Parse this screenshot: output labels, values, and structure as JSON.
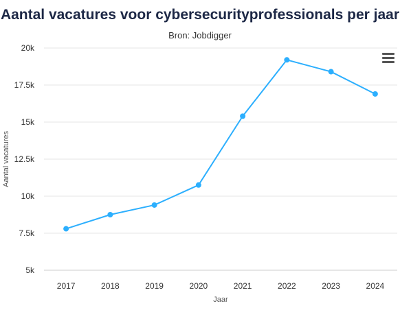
{
  "chart_data": {
    "type": "line",
    "title": "Aantal vacatures voor cybersecurityprofessionals per jaar",
    "subtitle": "Bron: Jobdigger",
    "xlabel": "Jaar",
    "ylabel": "Aantal vacatures",
    "categories": [
      "2017",
      "2018",
      "2019",
      "2020",
      "2021",
      "2022",
      "2023",
      "2024"
    ],
    "series": [
      {
        "values": [
          7800,
          8750,
          9400,
          10750,
          15400,
          19200,
          18400,
          16900
        ]
      }
    ],
    "ylim": [
      5000,
      20000
    ],
    "yticks": [
      {
        "value": 5000,
        "label": "5k"
      },
      {
        "value": 7500,
        "label": "7.5k"
      },
      {
        "value": 10000,
        "label": "10k"
      },
      {
        "value": 12500,
        "label": "12.5k"
      },
      {
        "value": 15000,
        "label": "15k"
      },
      {
        "value": 17500,
        "label": "17.5k"
      },
      {
        "value": 20000,
        "label": "20k"
      }
    ],
    "grid": true,
    "legend": "none",
    "line_color": "#2caffe"
  },
  "menu_icon": "hamburger-menu-icon"
}
